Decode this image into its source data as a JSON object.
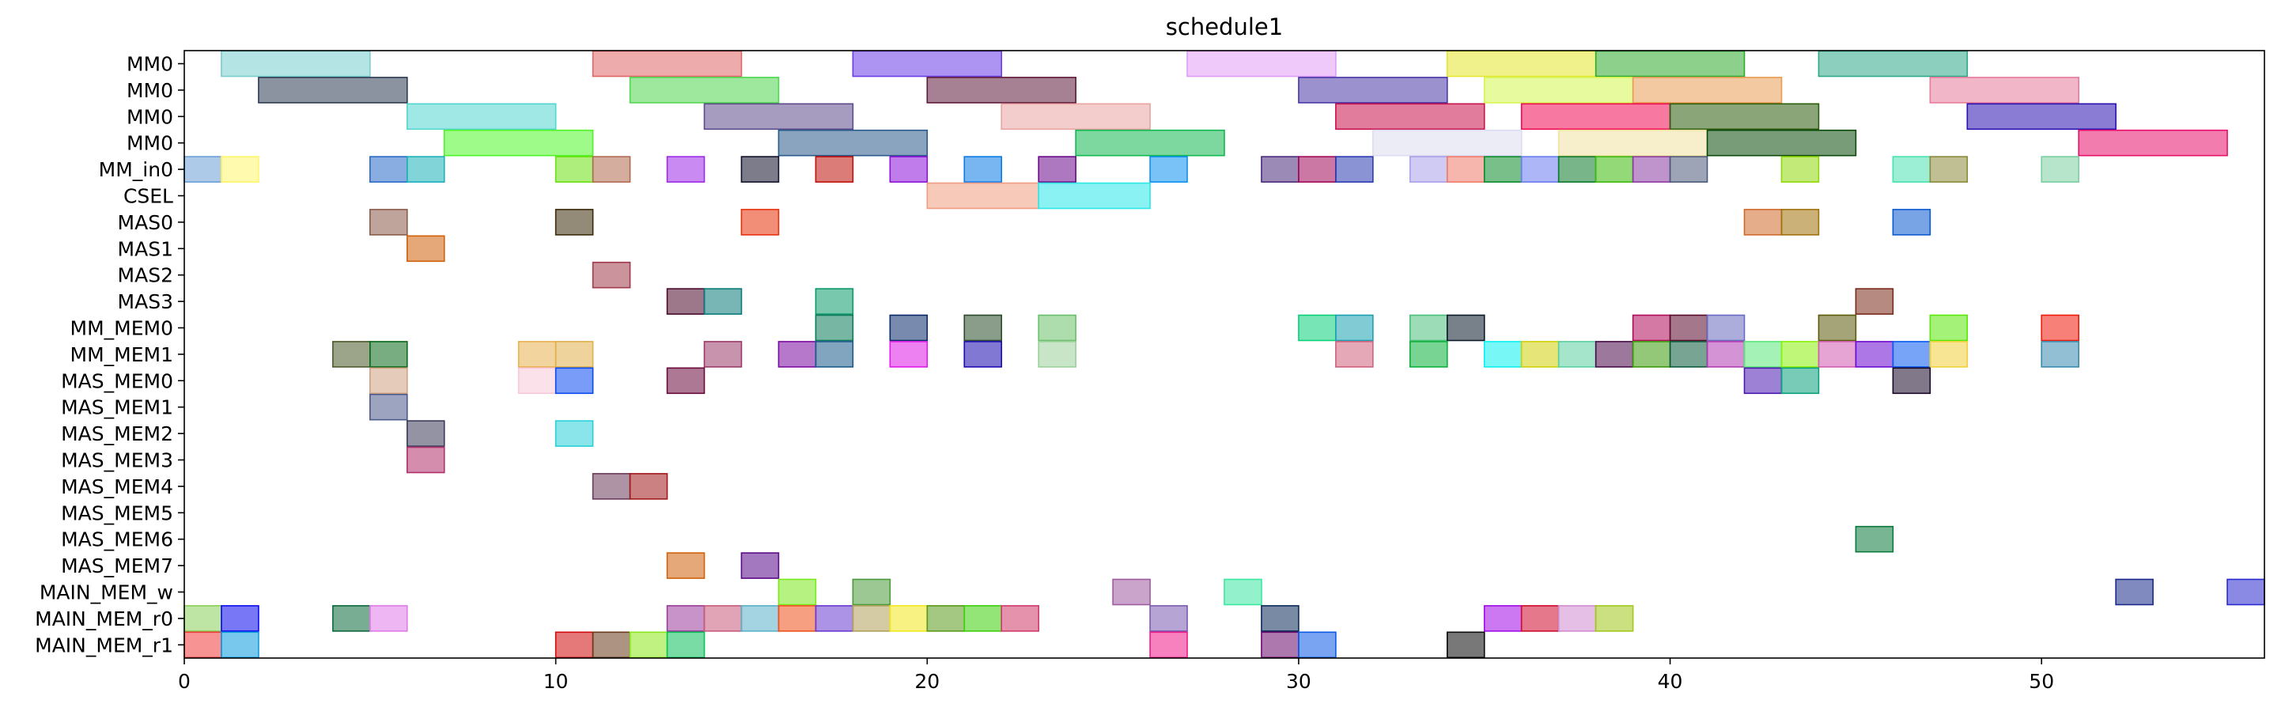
{
  "chart_data": {
    "type": "gantt",
    "title": "schedule1",
    "xlabel": "",
    "ylabel": "",
    "xlim": [
      0,
      56
    ],
    "xticks": [
      0,
      10,
      20,
      30,
      40,
      50
    ],
    "grid": false,
    "rows": [
      "MM0",
      "MM0",
      "MM0",
      "MM0",
      "MM_in0",
      "CSEL",
      "MAS0",
      "MAS1",
      "MAS2",
      "MAS3",
      "MM_MEM0",
      "MM_MEM1",
      "MAS_MEM0",
      "MAS_MEM1",
      "MAS_MEM2",
      "MAS_MEM3",
      "MAS_MEM4",
      "MAS_MEM5",
      "MAS_MEM6",
      "MAS_MEM7",
      "MAIN_MEM_w",
      "MAIN_MEM_r0",
      "MAIN_MEM_r1"
    ],
    "tasks": [
      {
        "row": 0,
        "start": 1,
        "end": 5,
        "color": "#79cdcd"
      },
      {
        "row": 0,
        "start": 11,
        "end": 15,
        "color": "#e06666"
      },
      {
        "row": 0,
        "start": 18,
        "end": 22,
        "color": "#6a3de8"
      },
      {
        "row": 0,
        "start": 27,
        "end": 31,
        "color": "#e09cf5"
      },
      {
        "row": 0,
        "start": 34,
        "end": 38,
        "color": "#e6e62e"
      },
      {
        "row": 0,
        "start": 38,
        "end": 42,
        "color": "#2eaa2e"
      },
      {
        "row": 0,
        "start": 44,
        "end": 48,
        "color": "#2ea88a"
      },
      {
        "row": 1,
        "start": 2,
        "end": 6,
        "color": "#2c3a52"
      },
      {
        "row": 1,
        "start": 12,
        "end": 16,
        "color": "#4fd64f"
      },
      {
        "row": 1,
        "start": 20,
        "end": 24,
        "color": "#5c1a3a"
      },
      {
        "row": 1,
        "start": 30,
        "end": 34,
        "color": "#4a36a8"
      },
      {
        "row": 1,
        "start": 35,
        "end": 39,
        "color": "#d6f54f"
      },
      {
        "row": 1,
        "start": 39,
        "end": 43,
        "color": "#e89c52"
      },
      {
        "row": 1,
        "start": 47,
        "end": 51,
        "color": "#e87a9c"
      },
      {
        "row": 2,
        "start": 6,
        "end": 10,
        "color": "#52d6d0"
      },
      {
        "row": 2,
        "start": 14,
        "end": 18,
        "color": "#5c4a8a"
      },
      {
        "row": 2,
        "start": 22,
        "end": 26,
        "color": "#eaa2a2"
      },
      {
        "row": 2,
        "start": 31,
        "end": 35,
        "color": "#c8104a"
      },
      {
        "row": 2,
        "start": 36,
        "end": 40,
        "color": "#f00a52"
      },
      {
        "row": 2,
        "start": 40,
        "end": 44,
        "color": "#2a5c0a"
      },
      {
        "row": 2,
        "start": 48,
        "end": 52,
        "color": "#2a10b0"
      },
      {
        "row": 3,
        "start": 7,
        "end": 11,
        "color": "#4ef528"
      },
      {
        "row": 3,
        "start": 16,
        "end": 20,
        "color": "#2a5a8c"
      },
      {
        "row": 3,
        "start": 24,
        "end": 28,
        "color": "#10b850"
      },
      {
        "row": 3,
        "start": 32,
        "end": 36,
        "color": "#dcdcf0"
      },
      {
        "row": 3,
        "start": 37,
        "end": 41,
        "color": "#f0e2a0"
      },
      {
        "row": 3,
        "start": 41,
        "end": 45,
        "color": "#0a4a0a"
      },
      {
        "row": 3,
        "start": 51,
        "end": 55,
        "color": "#e8106a"
      },
      {
        "row": 4,
        "start": 0,
        "end": 1,
        "color": "#6a9ed6"
      },
      {
        "row": 4,
        "start": 1,
        "end": 2,
        "color": "#fff56a"
      },
      {
        "row": 4,
        "start": 5,
        "end": 6,
        "color": "#2a6ac8"
      },
      {
        "row": 4,
        "start": 6,
        "end": 7,
        "color": "#1ab0b8"
      },
      {
        "row": 4,
        "start": 10,
        "end": 11,
        "color": "#6ae010"
      },
      {
        "row": 4,
        "start": 11,
        "end": 12,
        "color": "#b06a50"
      },
      {
        "row": 4,
        "start": 13,
        "end": 14,
        "color": "#9c2ae8"
      },
      {
        "row": 4,
        "start": 15,
        "end": 16,
        "color": "#10102a"
      },
      {
        "row": 4,
        "start": 17,
        "end": 18,
        "color": "#c0100a"
      },
      {
        "row": 4,
        "start": 19,
        "end": 20,
        "color": "#8c10d8"
      },
      {
        "row": 4,
        "start": 21,
        "end": 22,
        "color": "#0a7ae8"
      },
      {
        "row": 4,
        "start": 23,
        "end": 24,
        "color": "#6a0a8a"
      },
      {
        "row": 4,
        "start": 26,
        "end": 27,
        "color": "#0a90f0"
      },
      {
        "row": 4,
        "start": 29,
        "end": 30,
        "color": "#4a2a7a"
      },
      {
        "row": 4,
        "start": 30,
        "end": 31,
        "color": "#a00a5a"
      },
      {
        "row": 4,
        "start": 31,
        "end": 32,
        "color": "#2a3ab0"
      },
      {
        "row": 4,
        "start": 33,
        "end": 34,
        "color": "#a8a0e8"
      },
      {
        "row": 4,
        "start": 34,
        "end": 35,
        "color": "#f07a6a"
      },
      {
        "row": 4,
        "start": 35,
        "end": 36,
        "color": "#0a8a2a"
      },
      {
        "row": 4,
        "start": 36,
        "end": 37,
        "color": "#6a7af0"
      },
      {
        "row": 4,
        "start": 37,
        "end": 38,
        "color": "#0a7a2a"
      },
      {
        "row": 4,
        "start": 38,
        "end": 39,
        "color": "#3aba0a"
      },
      {
        "row": 4,
        "start": 39,
        "end": 40,
        "color": "#8a3aa0"
      },
      {
        "row": 4,
        "start": 40,
        "end": 41,
        "color": "#4a5a7a"
      },
      {
        "row": 4,
        "start": 43,
        "end": 44,
        "color": "#90d80a"
      },
      {
        "row": 4,
        "start": 46,
        "end": 47,
        "color": "#4ae0b0"
      },
      {
        "row": 4,
        "start": 47,
        "end": 48,
        "color": "#8a8a3a"
      },
      {
        "row": 4,
        "start": 50,
        "end": 51,
        "color": "#7ad0a0"
      },
      {
        "row": 5,
        "start": 20,
        "end": 23,
        "color": "#f09c80"
      },
      {
        "row": 5,
        "start": 23,
        "end": 26,
        "color": "#2ae8e8"
      },
      {
        "row": 6,
        "start": 5,
        "end": 6,
        "color": "#8a5a4a"
      },
      {
        "row": 6,
        "start": 10,
        "end": 11,
        "color": "#3a2a0a"
      },
      {
        "row": 6,
        "start": 15,
        "end": 16,
        "color": "#e8300a"
      },
      {
        "row": 6,
        "start": 42,
        "end": 43,
        "color": "#d06a2a"
      },
      {
        "row": 6,
        "start": 43,
        "end": 44,
        "color": "#a0700a"
      },
      {
        "row": 6,
        "start": 46,
        "end": 47,
        "color": "#0a5ad0"
      },
      {
        "row": 7,
        "start": 6,
        "end": 7,
        "color": "#d0600a"
      },
      {
        "row": 8,
        "start": 11,
        "end": 12,
        "color": "#a03a4a"
      },
      {
        "row": 9,
        "start": 13,
        "end": 14,
        "color": "#4a0a2a"
      },
      {
        "row": 9,
        "start": 14,
        "end": 15,
        "color": "#0a7a7a"
      },
      {
        "row": 9,
        "start": 17,
        "end": 18,
        "color": "#0a9a6a"
      },
      {
        "row": 9,
        "start": 45,
        "end": 46,
        "color": "#7a2a1a"
      },
      {
        "row": 10,
        "start": 17,
        "end": 18,
        "color": "#0a7a5a"
      },
      {
        "row": 10,
        "start": 19,
        "end": 20,
        "color": "#0a2a6a"
      },
      {
        "row": 10,
        "start": 21,
        "end": 22,
        "color": "#2a4a2a"
      },
      {
        "row": 10,
        "start": 23,
        "end": 24,
        "color": "#6ac06a"
      },
      {
        "row": 10,
        "start": 30,
        "end": 31,
        "color": "#0ad07a"
      },
      {
        "row": 10,
        "start": 31,
        "end": 32,
        "color": "#1aa0b0"
      },
      {
        "row": 10,
        "start": 33,
        "end": 34,
        "color": "#4ac07a"
      },
      {
        "row": 10,
        "start": 34,
        "end": 35,
        "color": "#0a1a2a"
      },
      {
        "row": 10,
        "start": 39,
        "end": 40,
        "color": "#b00a5a"
      },
      {
        "row": 10,
        "start": 40,
        "end": 41,
        "color": "#5a0a2a"
      },
      {
        "row": 10,
        "start": 41,
        "end": 42,
        "color": "#6a6ac0"
      },
      {
        "row": 10,
        "start": 44,
        "end": 45,
        "color": "#5a5a0a"
      },
      {
        "row": 10,
        "start": 47,
        "end": 48,
        "color": "#5ae80a"
      },
      {
        "row": 10,
        "start": 50,
        "end": 51,
        "color": "#f01a0a"
      },
      {
        "row": 11,
        "start": 4,
        "end": 5,
        "color": "#4a5a2a"
      },
      {
        "row": 11,
        "start": 5,
        "end": 6,
        "color": "#0a6a1a"
      },
      {
        "row": 11,
        "start": 9,
        "end": 10,
        "color": "#e8b050"
      },
      {
        "row": 11,
        "start": 10,
        "end": 11,
        "color": "#e0b04a"
      },
      {
        "row": 11,
        "start": 14,
        "end": 15,
        "color": "#9a3a6a"
      },
      {
        "row": 11,
        "start": 16,
        "end": 17,
        "color": "#7a0aa0"
      },
      {
        "row": 11,
        "start": 17,
        "end": 18,
        "color": "#1a5a8a"
      },
      {
        "row": 11,
        "start": 19,
        "end": 20,
        "color": "#e01ae8"
      },
      {
        "row": 11,
        "start": 21,
        "end": 22,
        "color": "#1a0ab0"
      },
      {
        "row": 11,
        "start": 23,
        "end": 24,
        "color": "#9ad09a"
      },
      {
        "row": 11,
        "start": 31,
        "end": 32,
        "color": "#d0607a"
      },
      {
        "row": 11,
        "start": 33,
        "end": 34,
        "color": "#0ab03a"
      },
      {
        "row": 11,
        "start": 35,
        "end": 36,
        "color": "#0af0f0"
      },
      {
        "row": 11,
        "start": 36,
        "end": 37,
        "color": "#d0d00a"
      },
      {
        "row": 11,
        "start": 37,
        "end": 38,
        "color": "#5ad0a0"
      },
      {
        "row": 11,
        "start": 38,
        "end": 39,
        "color": "#4a0a4a"
      },
      {
        "row": 11,
        "start": 39,
        "end": 40,
        "color": "#3a9a0a"
      },
      {
        "row": 11,
        "start": 40,
        "end": 41,
        "color": "#0a5a3a"
      },
      {
        "row": 11,
        "start": 41,
        "end": 42,
        "color": "#b03ab0"
      },
      {
        "row": 11,
        "start": 42,
        "end": 43,
        "color": "#5ae87a"
      },
      {
        "row": 11,
        "start": 43,
        "end": 44,
        "color": "#8af00a"
      },
      {
        "row": 11,
        "start": 44,
        "end": 45,
        "color": "#d05ab0"
      },
      {
        "row": 11,
        "start": 45,
        "end": 46,
        "color": "#6a0ad0"
      },
      {
        "row": 11,
        "start": 46,
        "end": 47,
        "color": "#0a5af0"
      },
      {
        "row": 11,
        "start": 47,
        "end": 48,
        "color": "#f0d03a"
      },
      {
        "row": 11,
        "start": 50,
        "end": 51,
        "color": "#3a8ab0"
      },
      {
        "row": 12,
        "start": 5,
        "end": 6,
        "color": "#d0a080"
      },
      {
        "row": 12,
        "start": 9,
        "end": 10,
        "color": "#f8c8d8"
      },
      {
        "row": 12,
        "start": 10,
        "end": 11,
        "color": "#0a4af0"
      },
      {
        "row": 12,
        "start": 13,
        "end": 14,
        "color": "#6a0a3a"
      },
      {
        "row": 12,
        "start": 42,
        "end": 43,
        "color": "#4a1ab0"
      },
      {
        "row": 12,
        "start": 43,
        "end": 44,
        "color": "#0aa07a"
      },
      {
        "row": 12,
        "start": 46,
        "end": 47,
        "color": "#1a0a2a"
      },
      {
        "row": 13,
        "start": 5,
        "end": 6,
        "color": "#4a5a8a"
      },
      {
        "row": 14,
        "start": 6,
        "end": 7,
        "color": "#3a3a5a"
      },
      {
        "row": 14,
        "start": 10,
        "end": 11,
        "color": "#2ad0d8"
      },
      {
        "row": 15,
        "start": 6,
        "end": 7,
        "color": "#b0306a"
      },
      {
        "row": 16,
        "start": 11,
        "end": 12,
        "color": "#6a3a5a"
      },
      {
        "row": 16,
        "start": 12,
        "end": 13,
        "color": "#a01a1a"
      },
      {
        "row": 18,
        "start": 45,
        "end": 46,
        "color": "#0a7a3a"
      },
      {
        "row": 19,
        "start": 13,
        "end": 14,
        "color": "#d0600a"
      },
      {
        "row": 19,
        "start": 15,
        "end": 16,
        "color": "#5a0a8a"
      },
      {
        "row": 20,
        "start": 16,
        "end": 17,
        "color": "#7ae81a"
      },
      {
        "row": 20,
        "start": 18,
        "end": 19,
        "color": "#4a9a3a"
      },
      {
        "row": 20,
        "start": 25,
        "end": 26,
        "color": "#a05aa0"
      },
      {
        "row": 20,
        "start": 28,
        "end": 29,
        "color": "#3ae8a0"
      },
      {
        "row": 20,
        "start": 52,
        "end": 53,
        "color": "#1a2a8a"
      },
      {
        "row": 20,
        "start": 55,
        "end": 56,
        "color": "#2a2ad0"
      },
      {
        "row": 21,
        "start": 0,
        "end": 1,
        "color": "#8ad05a"
      },
      {
        "row": 21,
        "start": 1,
        "end": 2,
        "color": "#0a0af0"
      },
      {
        "row": 21,
        "start": 4,
        "end": 5,
        "color": "#0a6a3a"
      },
      {
        "row": 21,
        "start": 5,
        "end": 6,
        "color": "#e07ae8"
      },
      {
        "row": 21,
        "start": 13,
        "end": 14,
        "color": "#9a3a9a"
      },
      {
        "row": 21,
        "start": 14,
        "end": 15,
        "color": "#c85a7a"
      },
      {
        "row": 21,
        "start": 15,
        "end": 16,
        "color": "#5ab0c8"
      },
      {
        "row": 21,
        "start": 16,
        "end": 17,
        "color": "#f0501a"
      },
      {
        "row": 21,
        "start": 17,
        "end": 18,
        "color": "#6a3ad0"
      },
      {
        "row": 21,
        "start": 18,
        "end": 19,
        "color": "#b0a05a"
      },
      {
        "row": 21,
        "start": 19,
        "end": 20,
        "color": "#f0e81a"
      },
      {
        "row": 21,
        "start": 20,
        "end": 21,
        "color": "#5a9a1a"
      },
      {
        "row": 21,
        "start": 21,
        "end": 22,
        "color": "#3ad00a"
      },
      {
        "row": 21,
        "start": 22,
        "end": 23,
        "color": "#d03a6a"
      },
      {
        "row": 21,
        "start": 26,
        "end": 27,
        "color": "#7a5ab0"
      },
      {
        "row": 21,
        "start": 29,
        "end": 30,
        "color": "#0a2a5a"
      },
      {
        "row": 21,
        "start": 35,
        "end": 36,
        "color": "#a00ae8"
      },
      {
        "row": 21,
        "start": 36,
        "end": 37,
        "color": "#d00a2a"
      },
      {
        "row": 21,
        "start": 37,
        "end": 38,
        "color": "#d08ad0"
      },
      {
        "row": 21,
        "start": 38,
        "end": 39,
        "color": "#a0c81a"
      },
      {
        "row": 22,
        "start": 0,
        "end": 1,
        "color": "#f03a3a"
      },
      {
        "row": 22,
        "start": 1,
        "end": 2,
        "color": "#0a9ae0"
      },
      {
        "row": 22,
        "start": 10,
        "end": 11,
        "color": "#d00a0a"
      },
      {
        "row": 22,
        "start": 11,
        "end": 12,
        "color": "#6a3a1a"
      },
      {
        "row": 22,
        "start": 12,
        "end": 13,
        "color": "#8ae81a"
      },
      {
        "row": 22,
        "start": 13,
        "end": 14,
        "color": "#0ac05a"
      },
      {
        "row": 22,
        "start": 26,
        "end": 27,
        "color": "#f01a8a"
      },
      {
        "row": 22,
        "start": 29,
        "end": 30,
        "color": "#6a0a6a"
      },
      {
        "row": 22,
        "start": 30,
        "end": 31,
        "color": "#0a5ae8"
      },
      {
        "row": 22,
        "start": 34,
        "end": 35,
        "color": "#0a0a0a"
      }
    ]
  }
}
